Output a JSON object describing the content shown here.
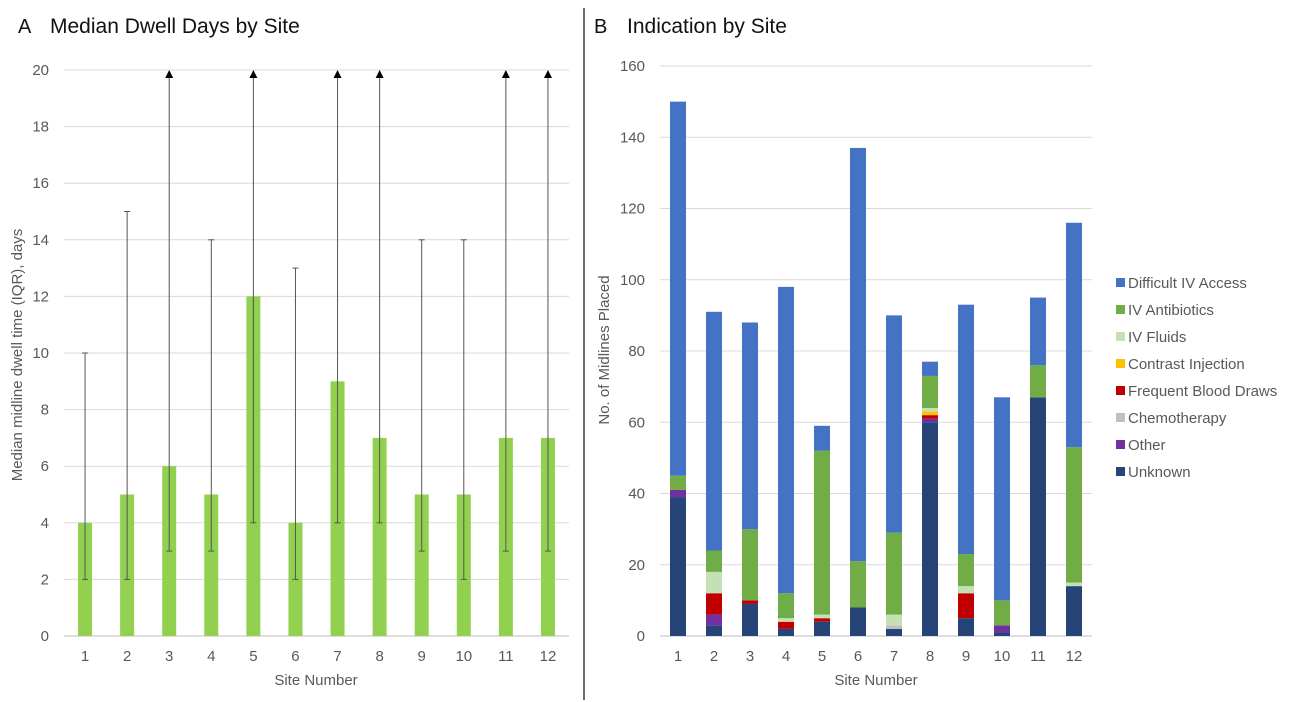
{
  "chart_data": [
    {
      "type": "bar",
      "panel_label": "A",
      "title": "Median Dwell Days by Site",
      "xlabel": "Site Number",
      "ylabel": "Median midline dwell time (IQR), days",
      "ylim": [
        0,
        20
      ],
      "yticks": [
        0,
        2,
        4,
        6,
        8,
        10,
        12,
        14,
        16,
        18,
        20
      ],
      "grid": true,
      "color": "#92d050",
      "categories": [
        "1",
        "2",
        "3",
        "4",
        "5",
        "6",
        "7",
        "8",
        "9",
        "10",
        "11",
        "12"
      ],
      "values": [
        4,
        5,
        6,
        5,
        12,
        4,
        9,
        7,
        5,
        5,
        7,
        7
      ],
      "iqr_low": [
        2,
        2,
        3,
        3,
        4,
        2,
        4,
        4,
        3,
        2,
        3,
        3
      ],
      "iqr_high": [
        10,
        15,
        20,
        14,
        20,
        13,
        20,
        20,
        14,
        14,
        20,
        20
      ],
      "iqr_high_exceeds_axis": [
        false,
        false,
        true,
        false,
        true,
        false,
        true,
        true,
        false,
        false,
        true,
        true
      ]
    },
    {
      "type": "bar",
      "stacked": true,
      "panel_label": "B",
      "title": "Indication by Site",
      "xlabel": "Site Number",
      "ylabel": "No. of Midlines Placed",
      "ylim": [
        0,
        160
      ],
      "yticks": [
        0,
        20,
        40,
        60,
        80,
        100,
        120,
        140,
        160
      ],
      "grid": true,
      "legend_position": "right",
      "categories": [
        "1",
        "2",
        "3",
        "4",
        "5",
        "6",
        "7",
        "8",
        "9",
        "10",
        "11",
        "12"
      ],
      "series": [
        {
          "name": "Unknown",
          "color": "#264478",
          "values": [
            39,
            3,
            9,
            2,
            4,
            8,
            2,
            60,
            5,
            1,
            67,
            14
          ]
        },
        {
          "name": "Other",
          "color": "#7030a0",
          "values": [
            2,
            3,
            0,
            0,
            0,
            0,
            0,
            1,
            0,
            2,
            0,
            0
          ]
        },
        {
          "name": "Chemotherapy",
          "color": "#bfbfbf",
          "values": [
            0,
            0,
            0,
            0,
            0,
            0,
            1,
            0,
            0,
            0,
            0,
            0
          ]
        },
        {
          "name": "Frequent Blood Draws",
          "color": "#c00000",
          "values": [
            0,
            6,
            1,
            2,
            1,
            0,
            0,
            1,
            7,
            0,
            0,
            0
          ]
        },
        {
          "name": "Contrast Injection",
          "color": "#ffc000",
          "values": [
            0,
            0,
            0,
            0,
            0,
            0,
            0,
            1,
            0,
            0,
            0,
            0
          ]
        },
        {
          "name": "IV Fluids",
          "color": "#c5e0b4",
          "values": [
            0,
            6,
            0,
            1,
            1,
            0,
            3,
            1,
            2,
            0,
            0,
            1
          ]
        },
        {
          "name": "IV Antibiotics",
          "color": "#70ad47",
          "values": [
            4,
            6,
            20,
            7,
            46,
            13,
            23,
            9,
            9,
            7,
            9,
            38
          ]
        },
        {
          "name": "Difficult IV Access",
          "color": "#4472c4",
          "values": [
            105,
            67,
            58,
            86,
            7,
            116,
            61,
            4,
            70,
            57,
            19,
            63
          ]
        }
      ],
      "legend_order": [
        "Difficult IV Access",
        "IV Antibiotics",
        "IV Fluids",
        "Contrast Injection",
        "Frequent Blood Draws",
        "Chemotherapy",
        "Other",
        "Unknown"
      ]
    }
  ]
}
